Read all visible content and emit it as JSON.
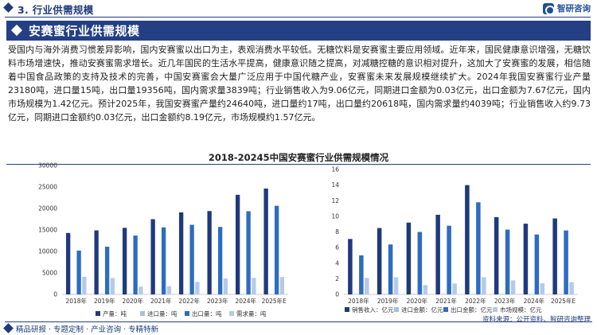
{
  "header": {
    "section_title": "3. 行业供需规模",
    "brand": "智研咨询"
  },
  "title_band": {
    "title": "安赛蜜行业供需规模"
  },
  "paragraph": "受国内与海外消费习惯差异影响，国内安赛蜜以出口为主，表观消费水平较低。无糖饮料是安赛蜜主要应用领域。近年来，国民健康意识增强，无糖饮料市场增速快，推动安赛蜜需求增长。近几年国民的生活水平提高，健康意识随之提高，对减糖控糖的意识相对提升，这加大了安赛蜜的发展，相信随着中国食品政策的支持及技术的完善，中国安赛蜜会大量广泛应用于中国代糖产业，安赛蜜未来发展规模继续扩大。2024年我国安赛蜜行业产量23180吨，进口量15吨，出口量19356吨，国内需求量3839吨；行业销售收入为9.06亿元，同期进口金额为0.03亿元，出口金额为7.67亿元，国内市场规模为1.42亿元。预计2025年，我国安赛蜜产量约24640吨，进口量约17吨，出口量约20618吨，国内需求量约4039吨；行业销售收入约9.73亿元，同期进口金额约0.03亿元，出口金额约8.19亿元，市场规模约1.57亿元。",
  "chart_title": "2018-20245中国安赛蜜行业供需规模情况",
  "colors": {
    "navy": "#1e3b7a",
    "series": [
      "#1f3a7c",
      "#a7bfe0",
      "#2d6cc0",
      "#b5cae6"
    ]
  },
  "chart_data": [
    {
      "type": "bar",
      "categories": [
        "2018年",
        "2019年",
        "2020年",
        "2021年",
        "2022年",
        "2023年",
        "2024年",
        "2025年E"
      ],
      "ylim": [
        0,
        30000
      ],
      "yticks": [
        0,
        5000,
        10000,
        15000,
        20000,
        25000,
        30000
      ],
      "series": [
        {
          "name": "产量：吨",
          "values": [
            14300,
            14900,
            15500,
            17500,
            19100,
            19400,
            23180,
            24640
          ]
        },
        {
          "name": "进口量：吨",
          "values": [
            15,
            15,
            15,
            15,
            15,
            15,
            15,
            17
          ]
        },
        {
          "name": "出口量：吨",
          "values": [
            10200,
            11100,
            13700,
            15600,
            16200,
            15700,
            19356,
            20618
          ]
        },
        {
          "name": "需求量：吨",
          "values": [
            4100,
            3800,
            1800,
            1900,
            2900,
            3700,
            3839,
            4039
          ]
        }
      ]
    },
    {
      "type": "bar",
      "categories": [
        "2018年",
        "2019年",
        "2020年",
        "2021年",
        "2022年",
        "2023年",
        "2024年",
        "2025年E"
      ],
      "ylim": [
        0,
        16
      ],
      "yticks": [
        0,
        2,
        4,
        6,
        8,
        10,
        12,
        14,
        16
      ],
      "series": [
        {
          "name": "销售收入：亿元",
          "values": [
            7.1,
            8.5,
            9.2,
            10.2,
            14.0,
            9.9,
            9.06,
            9.73
          ]
        },
        {
          "name": "进口金额：亿元",
          "values": [
            0.03,
            0.03,
            0.03,
            0.03,
            0.03,
            0.03,
            0.03,
            0.03
          ]
        },
        {
          "name": "出口金额：亿元",
          "values": [
            5.0,
            6.4,
            8.0,
            8.8,
            11.8,
            8.3,
            7.67,
            8.19
          ]
        },
        {
          "name": "市场规模：亿元",
          "values": [
            2.1,
            2.2,
            1.2,
            1.4,
            2.2,
            1.8,
            1.42,
            1.57
          ]
        }
      ]
    }
  ],
  "footer": {
    "tagline": "精品研报 · 专题定制 · 产业咨询 · 专精特新",
    "source": "资料来源：公开资料、智研咨询整理"
  }
}
